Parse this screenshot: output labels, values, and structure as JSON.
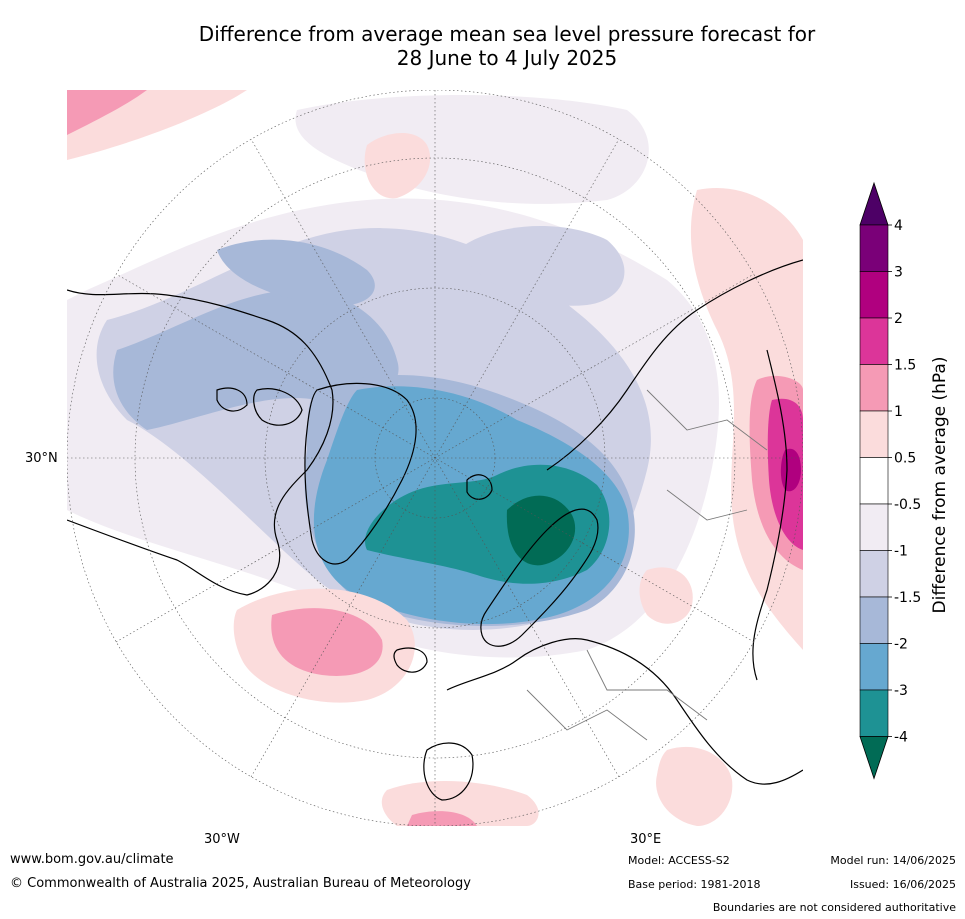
{
  "title_line1": "Difference from average mean sea level pressure forecast for",
  "title_line2": "28 June to 4 July 2025",
  "map": {
    "projection": "north-polar-stereographic",
    "labels": {
      "left_lat": "30°N",
      "bottom_lon_left": "30°W",
      "bottom_lon_right": "30°E"
    },
    "colors": {
      "land": "#ffffff",
      "coast": "#000000",
      "borders": "#7a7a7a",
      "graticule": "#555555"
    }
  },
  "colorbar": {
    "title": "Difference from average (hPa)",
    "tick_labels": [
      "4",
      "3",
      "2",
      "1.5",
      "1",
      "0.5",
      "-0.5",
      "-1",
      "-1.5",
      "-2",
      "-3",
      "-4"
    ],
    "bins_top_to_bottom": [
      {
        "color": "#7a0078"
      },
      {
        "color": "#b0007f"
      },
      {
        "color": "#dc3599"
      },
      {
        "color": "#f59ab5"
      },
      {
        "color": "#fbdcdc"
      },
      {
        "color": "#ffffff"
      },
      {
        "color": "#f1ecf3"
      },
      {
        "color": "#cfd1e5"
      },
      {
        "color": "#a7b8d8"
      },
      {
        "color": "#66a8d0"
      },
      {
        "color": "#1e9294"
      }
    ],
    "over_color": "#4d0066",
    "under_color": "#016b55"
  },
  "footer": {
    "website": "www.bom.gov.au/climate",
    "copyright": "© Commonwealth of Australia 2025, Australian Bureau of Meteorology",
    "model": "Model: ACCESS-S2",
    "base_period": "Base period: 1981-2018",
    "model_run": "Model run: 14/06/2025",
    "issued": "Issued: 16/06/2025",
    "disclaimer": "Boundaries are not considered authoritative"
  }
}
